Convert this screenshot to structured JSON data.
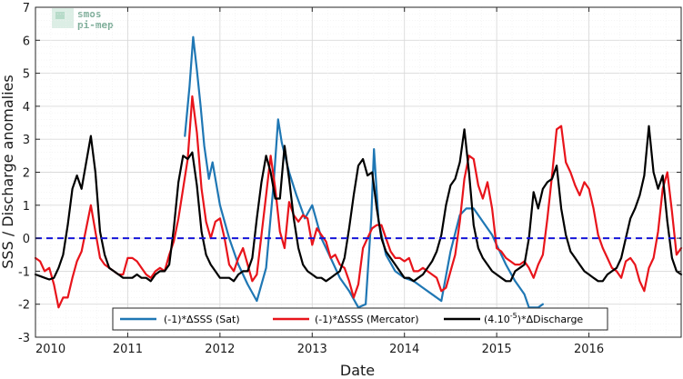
{
  "chart_data": {
    "type": "line",
    "xlabel": "Date",
    "ylabel": "SSS / Discharge anomalies",
    "xlim": [
      2010.0,
      2017.0
    ],
    "ylim": [
      -3,
      7
    ],
    "x_ticks": [
      "2010",
      "2011",
      "2012",
      "2013",
      "2014",
      "2015",
      "2016"
    ],
    "y_ticks": [
      "-3",
      "-2",
      "-1",
      "0",
      "1",
      "2",
      "3",
      "4",
      "5",
      "6",
      "7"
    ],
    "grid": true,
    "reference_line": {
      "y": 0,
      "style": "dashed",
      "color": "#1515d8"
    },
    "legend_placement": "bottom-center",
    "legend_items": [
      {
        "label": "(-1)*ΔSSS (Sat)",
        "color": "#1f77b4"
      },
      {
        "label": "(-1)*ΔSSS (Mercator)",
        "color": "#e8141b"
      },
      {
        "label_prefix": "(4.10",
        "label_sup": "-5",
        "label_suffix": ")*ΔDischarge",
        "color": "#000000"
      }
    ],
    "logo": {
      "line1": "smos",
      "line2": "pi-mep"
    },
    "series": [
      {
        "name": "(-1)*ΔSSS (Sat)",
        "color": "#1f77b4",
        "x": [
          2011.62,
          2011.67,
          2011.71,
          2011.75,
          2011.79,
          2011.83,
          2011.88,
          2011.92,
          2012.0,
          2012.1,
          2012.2,
          2012.3,
          2012.4,
          2012.5,
          2012.58,
          2012.63,
          2012.67,
          2012.75,
          2012.83,
          2012.92,
          2013.0,
          2013.1,
          2013.2,
          2013.3,
          2013.4,
          2013.5,
          2013.58,
          2013.64,
          2013.67,
          2013.72,
          2013.8,
          2013.9,
          2014.0,
          2014.1,
          2014.2,
          2014.3,
          2014.4,
          2014.5,
          2014.6,
          2014.67,
          2014.75,
          2014.85,
          2014.95,
          2015.0,
          2015.1,
          2015.2,
          2015.3,
          2015.35,
          2015.45,
          2015.5
        ],
        "y": [
          3.1,
          4.6,
          6.1,
          5.1,
          4.0,
          2.8,
          1.8,
          2.3,
          1.0,
          0.0,
          -0.8,
          -1.4,
          -1.9,
          -0.9,
          1.6,
          3.6,
          2.9,
          2.0,
          1.3,
          0.6,
          1.0,
          0.0,
          -0.6,
          -1.2,
          -1.6,
          -2.1,
          -2.0,
          0.6,
          2.7,
          0.5,
          -0.5,
          -1.0,
          -1.2,
          -1.3,
          -1.5,
          -1.7,
          -1.9,
          -0.4,
          0.7,
          0.9,
          0.9,
          0.5,
          0.1,
          -0.2,
          -0.8,
          -1.3,
          -1.7,
          -2.1,
          -2.1,
          -2.0
        ]
      },
      {
        "name": "(-1)*ΔSSS (Mercator)",
        "color": "#e8141b",
        "x": [
          2010.0,
          2010.05,
          2010.1,
          2010.15,
          2010.2,
          2010.25,
          2010.3,
          2010.35,
          2010.4,
          2010.45,
          2010.5,
          2010.55,
          2010.6,
          2010.65,
          2010.7,
          2010.75,
          2010.8,
          2010.85,
          2010.9,
          2010.95,
          2011.0,
          2011.05,
          2011.1,
          2011.15,
          2011.2,
          2011.25,
          2011.3,
          2011.35,
          2011.4,
          2011.45,
          2011.5,
          2011.55,
          2011.6,
          2011.65,
          2011.7,
          2011.75,
          2011.8,
          2011.85,
          2011.9,
          2011.95,
          2012.0,
          2012.05,
          2012.1,
          2012.15,
          2012.2,
          2012.25,
          2012.3,
          2012.35,
          2012.4,
          2012.45,
          2012.5,
          2012.55,
          2012.6,
          2012.65,
          2012.7,
          2012.75,
          2012.8,
          2012.85,
          2012.9,
          2012.95,
          2013.0,
          2013.05,
          2013.1,
          2013.15,
          2013.2,
          2013.25,
          2013.3,
          2013.35,
          2013.4,
          2013.45,
          2013.5,
          2013.55,
          2013.6,
          2013.65,
          2013.7,
          2013.75,
          2013.8,
          2013.85,
          2013.9,
          2013.95,
          2014.0,
          2014.05,
          2014.1,
          2014.15,
          2014.2,
          2014.25,
          2014.3,
          2014.35,
          2014.4,
          2014.45,
          2014.5,
          2014.55,
          2014.6,
          2014.65,
          2014.7,
          2014.75,
          2014.8,
          2014.85,
          2014.9,
          2014.95,
          2015.0,
          2015.05,
          2015.1,
          2015.15,
          2015.2,
          2015.25,
          2015.3,
          2015.35,
          2015.4,
          2015.45,
          2015.5,
          2015.55,
          2015.6,
          2015.65,
          2015.7,
          2015.75,
          2015.8,
          2015.85,
          2015.9,
          2015.95,
          2016.0,
          2016.05,
          2016.1,
          2016.15,
          2016.2,
          2016.25,
          2016.3,
          2016.35,
          2016.4,
          2016.45,
          2016.5,
          2016.55,
          2016.6,
          2016.65,
          2016.7,
          2016.75,
          2016.8,
          2016.85,
          2016.9,
          2016.95,
          2017.0
        ],
        "y": [
          -0.6,
          -0.7,
          -1.0,
          -0.9,
          -1.4,
          -2.1,
          -1.8,
          -1.8,
          -1.2,
          -0.7,
          -0.4,
          0.3,
          1.0,
          0.2,
          -0.6,
          -0.8,
          -0.9,
          -1.0,
          -1.1,
          -1.1,
          -0.6,
          -0.6,
          -0.7,
          -0.9,
          -1.1,
          -1.2,
          -1.0,
          -0.9,
          -1.0,
          -0.5,
          -0.1,
          0.6,
          1.5,
          2.4,
          4.3,
          3.2,
          1.5,
          0.5,
          0.0,
          0.5,
          0.6,
          0.0,
          -0.8,
          -1.0,
          -0.6,
          -0.3,
          -0.8,
          -1.3,
          -1.1,
          0.1,
          1.3,
          2.5,
          1.5,
          0.2,
          -0.3,
          1.1,
          0.7,
          0.5,
          0.7,
          0.6,
          -0.2,
          0.3,
          0.1,
          -0.1,
          -0.6,
          -0.5,
          -0.8,
          -0.9,
          -1.3,
          -1.8,
          -1.4,
          -0.3,
          0.0,
          0.3,
          0.4,
          0.4,
          0.0,
          -0.4,
          -0.6,
          -0.6,
          -0.7,
          -0.6,
          -1.0,
          -1.0,
          -0.9,
          -1.0,
          -1.1,
          -1.2,
          -1.6,
          -1.5,
          -1.0,
          -0.5,
          0.5,
          1.8,
          2.5,
          2.4,
          1.6,
          1.2,
          1.7,
          0.9,
          -0.3,
          -0.4,
          -0.6,
          -0.7,
          -0.8,
          -0.8,
          -0.7,
          -0.9,
          -1.2,
          -0.8,
          -0.5,
          0.6,
          1.9,
          3.3,
          3.4,
          2.3,
          2.0,
          1.6,
          1.3,
          1.7,
          1.5,
          0.9,
          0.1,
          -0.3,
          -0.6,
          -0.9,
          -1.0,
          -1.2,
          -0.7,
          -0.6,
          -0.8,
          -1.3,
          -1.6,
          -0.9,
          -0.6,
          0.2,
          1.5,
          2.0,
          0.8,
          -0.5,
          -0.3
        ]
      },
      {
        "name": "(4.10^-5)*ΔDischarge",
        "color": "#000000",
        "x": [
          2010.0,
          2010.05,
          2010.1,
          2010.15,
          2010.2,
          2010.25,
          2010.3,
          2010.35,
          2010.4,
          2010.45,
          2010.5,
          2010.55,
          2010.6,
          2010.65,
          2010.7,
          2010.75,
          2010.8,
          2010.85,
          2010.9,
          2010.95,
          2011.0,
          2011.05,
          2011.1,
          2011.15,
          2011.2,
          2011.25,
          2011.3,
          2011.35,
          2011.4,
          2011.45,
          2011.5,
          2011.55,
          2011.6,
          2011.65,
          2011.7,
          2011.75,
          2011.8,
          2011.85,
          2011.9,
          2011.95,
          2012.0,
          2012.05,
          2012.1,
          2012.15,
          2012.2,
          2012.25,
          2012.3,
          2012.35,
          2012.4,
          2012.45,
          2012.5,
          2012.55,
          2012.6,
          2012.65,
          2012.7,
          2012.75,
          2012.8,
          2012.85,
          2012.9,
          2012.95,
          2013.0,
          2013.05,
          2013.1,
          2013.15,
          2013.2,
          2013.25,
          2013.3,
          2013.35,
          2013.4,
          2013.45,
          2013.5,
          2013.55,
          2013.6,
          2013.65,
          2013.7,
          2013.75,
          2013.8,
          2013.85,
          2013.9,
          2013.95,
          2014.0,
          2014.05,
          2014.1,
          2014.15,
          2014.2,
          2014.25,
          2014.3,
          2014.35,
          2014.4,
          2014.45,
          2014.5,
          2014.55,
          2014.6,
          2014.65,
          2014.7,
          2014.75,
          2014.8,
          2014.85,
          2014.9,
          2014.95,
          2015.0,
          2015.05,
          2015.1,
          2015.15,
          2015.2,
          2015.25,
          2015.3,
          2015.35,
          2015.4,
          2015.45,
          2015.5,
          2015.55,
          2015.6,
          2015.65,
          2015.7,
          2015.75,
          2015.8,
          2015.85,
          2015.9,
          2015.95,
          2016.0,
          2016.05,
          2016.1,
          2016.15,
          2016.2,
          2016.25,
          2016.3,
          2016.35,
          2016.4,
          2016.45,
          2016.5,
          2016.55,
          2016.6,
          2016.65,
          2016.7,
          2016.75,
          2016.8,
          2016.85,
          2016.9,
          2016.95,
          2017.0
        ],
        "y": [
          -1.1,
          -1.15,
          -1.2,
          -1.25,
          -1.2,
          -0.9,
          -0.5,
          0.4,
          1.5,
          1.9,
          1.5,
          2.3,
          3.1,
          2.0,
          0.2,
          -0.5,
          -0.9,
          -1.0,
          -1.1,
          -1.2,
          -1.2,
          -1.2,
          -1.1,
          -1.2,
          -1.2,
          -1.3,
          -1.1,
          -1.0,
          -1.0,
          -0.8,
          0.3,
          1.7,
          2.5,
          2.4,
          2.6,
          1.6,
          0.2,
          -0.5,
          -0.8,
          -1.0,
          -1.2,
          -1.2,
          -1.2,
          -1.3,
          -1.1,
          -1.0,
          -1.0,
          -0.6,
          0.6,
          1.7,
          2.5,
          2.0,
          1.2,
          1.2,
          2.8,
          1.8,
          0.6,
          -0.3,
          -0.8,
          -1.0,
          -1.1,
          -1.2,
          -1.2,
          -1.3,
          -1.2,
          -1.1,
          -1.0,
          -0.6,
          0.3,
          1.3,
          2.2,
          2.4,
          1.9,
          2.0,
          0.9,
          0.0,
          -0.4,
          -0.6,
          -0.8,
          -1.0,
          -1.2,
          -1.2,
          -1.3,
          -1.2,
          -1.1,
          -0.9,
          -0.7,
          -0.4,
          0.1,
          1.0,
          1.6,
          1.8,
          2.3,
          3.3,
          2.0,
          0.4,
          -0.3,
          -0.6,
          -0.8,
          -1.0,
          -1.1,
          -1.2,
          -1.3,
          -1.3,
          -1.0,
          -0.9,
          -0.8,
          0.0,
          1.4,
          0.9,
          1.5,
          1.7,
          1.8,
          2.2,
          0.9,
          0.1,
          -0.4,
          -0.6,
          -0.8,
          -1.0,
          -1.1,
          -1.2,
          -1.3,
          -1.3,
          -1.1,
          -1.0,
          -0.9,
          -0.6,
          0.0,
          0.6,
          0.9,
          1.3,
          1.9,
          3.4,
          2.0,
          1.5,
          1.9,
          0.5,
          -0.6,
          -1.0,
          -1.1
        ]
      }
    ]
  }
}
